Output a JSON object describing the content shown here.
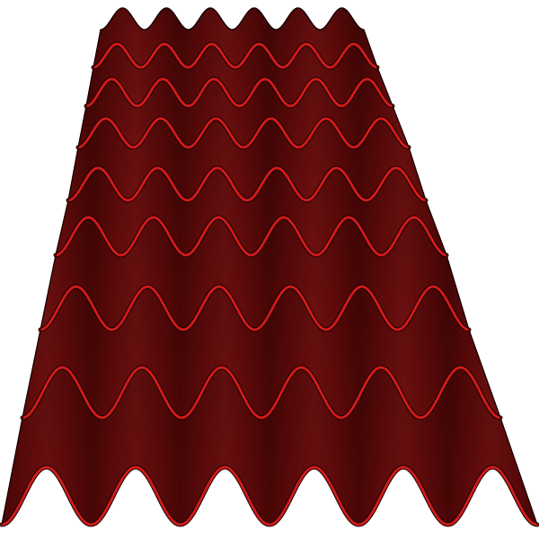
{
  "image": {
    "subject": "corrugated-roof-tile-sheet",
    "background_color": "#ffffff",
    "sheet_colors": {
      "base": "#5e0a0a",
      "shadow": "#360303",
      "highlight": "#7a1515",
      "rim": "#d01a1a",
      "outline": "#1a0000"
    },
    "tile_row_count": 8,
    "waves_per_row": 6
  }
}
